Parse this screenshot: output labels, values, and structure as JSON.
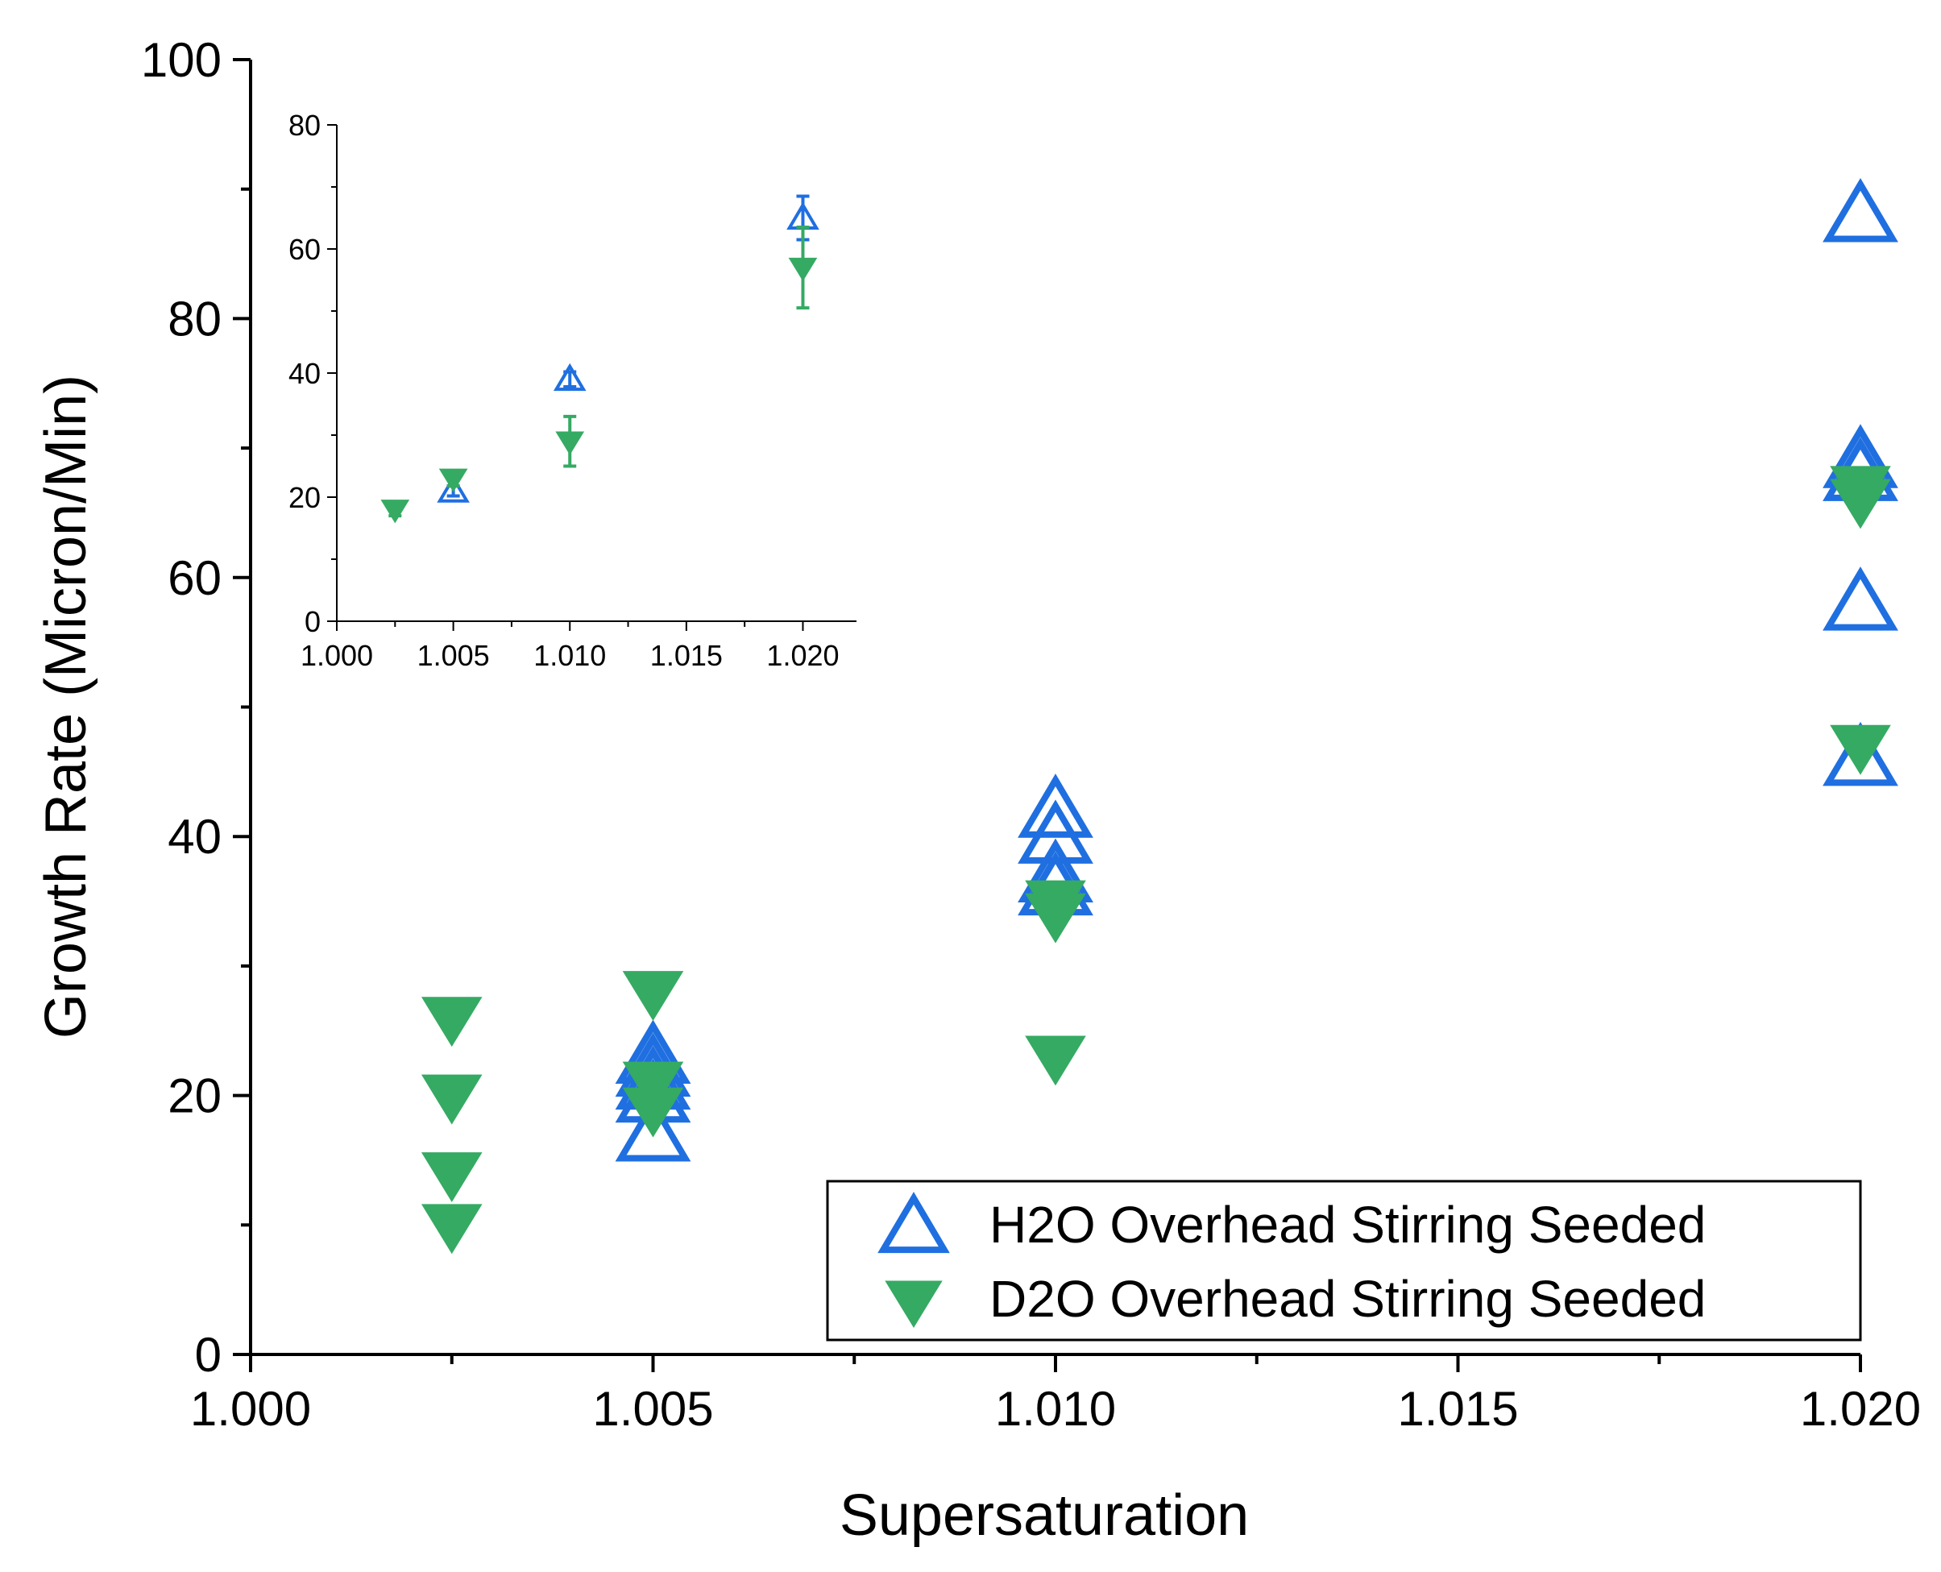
{
  "colors": {
    "h2o": "#1f6fe0",
    "d2o": "#35aa63",
    "axis": "#000000"
  },
  "chart_data": [
    {
      "type": "scatter",
      "xlabel": "Supersaturation",
      "ylabel": "Growth Rate (Micron/Min)",
      "xlim": [
        1.0,
        1.02
      ],
      "ylim": [
        0,
        100
      ],
      "xticks": [
        1.0,
        1.005,
        1.01,
        1.015,
        1.02
      ],
      "xtick_labels": [
        "1.000",
        "1.005",
        "1.010",
        "1.015",
        "1.020"
      ],
      "yticks": [
        0,
        20,
        40,
        60,
        80,
        100
      ],
      "ytick_labels": [
        "0",
        "20",
        "40",
        "60",
        "80",
        "100"
      ],
      "legend": [
        "H2O Overhead Stirring Seeded",
        "D2O Overhead Stirring Seeded"
      ],
      "legend_position": "bottom-right",
      "series": [
        {
          "name": "H2O Overhead Stirring Seeded",
          "marker": "open-triangle-up",
          "x": [
            1.005,
            1.005,
            1.005,
            1.005,
            1.005,
            1.01,
            1.01,
            1.01,
            1.01,
            1.02,
            1.02,
            1.02,
            1.02,
            1.02
          ],
          "y": [
            21,
            22,
            23,
            20,
            17,
            42,
            40,
            37,
            36,
            88,
            69,
            68,
            58,
            46
          ]
        },
        {
          "name": "D2O Overhead Stirring Seeded",
          "marker": "filled-triangle-down",
          "x": [
            1.0025,
            1.0025,
            1.0025,
            1.0025,
            1.005,
            1.005,
            1.005,
            1.01,
            1.01,
            1.01,
            1.02,
            1.02,
            1.02
          ],
          "y": [
            26,
            20,
            14,
            10,
            28,
            21,
            19,
            35,
            34,
            23,
            67,
            66,
            47
          ]
        }
      ]
    },
    {
      "type": "scatter",
      "xlim": [
        1.0,
        1.0223
      ],
      "ylim": [
        0,
        80
      ],
      "xticks": [
        1.0,
        1.005,
        1.01,
        1.015,
        1.02
      ],
      "xtick_labels": [
        "1.000",
        "1.005",
        "1.010",
        "1.015",
        "1.020"
      ],
      "yticks": [
        0,
        20,
        40,
        60,
        80
      ],
      "ytick_labels": [
        "0",
        "20",
        "40",
        "60",
        "80"
      ],
      "series": [
        {
          "name": "H2O Overhead Stirring Seeded",
          "marker": "open-triangle-up",
          "x": [
            1.005,
            1.01,
            1.02
          ],
          "y": [
            21,
            39,
            65
          ],
          "error": [
            0.8,
            1.2,
            3.5
          ]
        },
        {
          "name": "D2O Overhead Stirring Seeded",
          "marker": "filled-triangle-down",
          "x": [
            1.0025,
            1.005,
            1.01,
            1.02
          ],
          "y": [
            18,
            23,
            29,
            57
          ],
          "error": [
            1.0,
            1.2,
            4.0,
            6.5
          ]
        }
      ]
    }
  ]
}
